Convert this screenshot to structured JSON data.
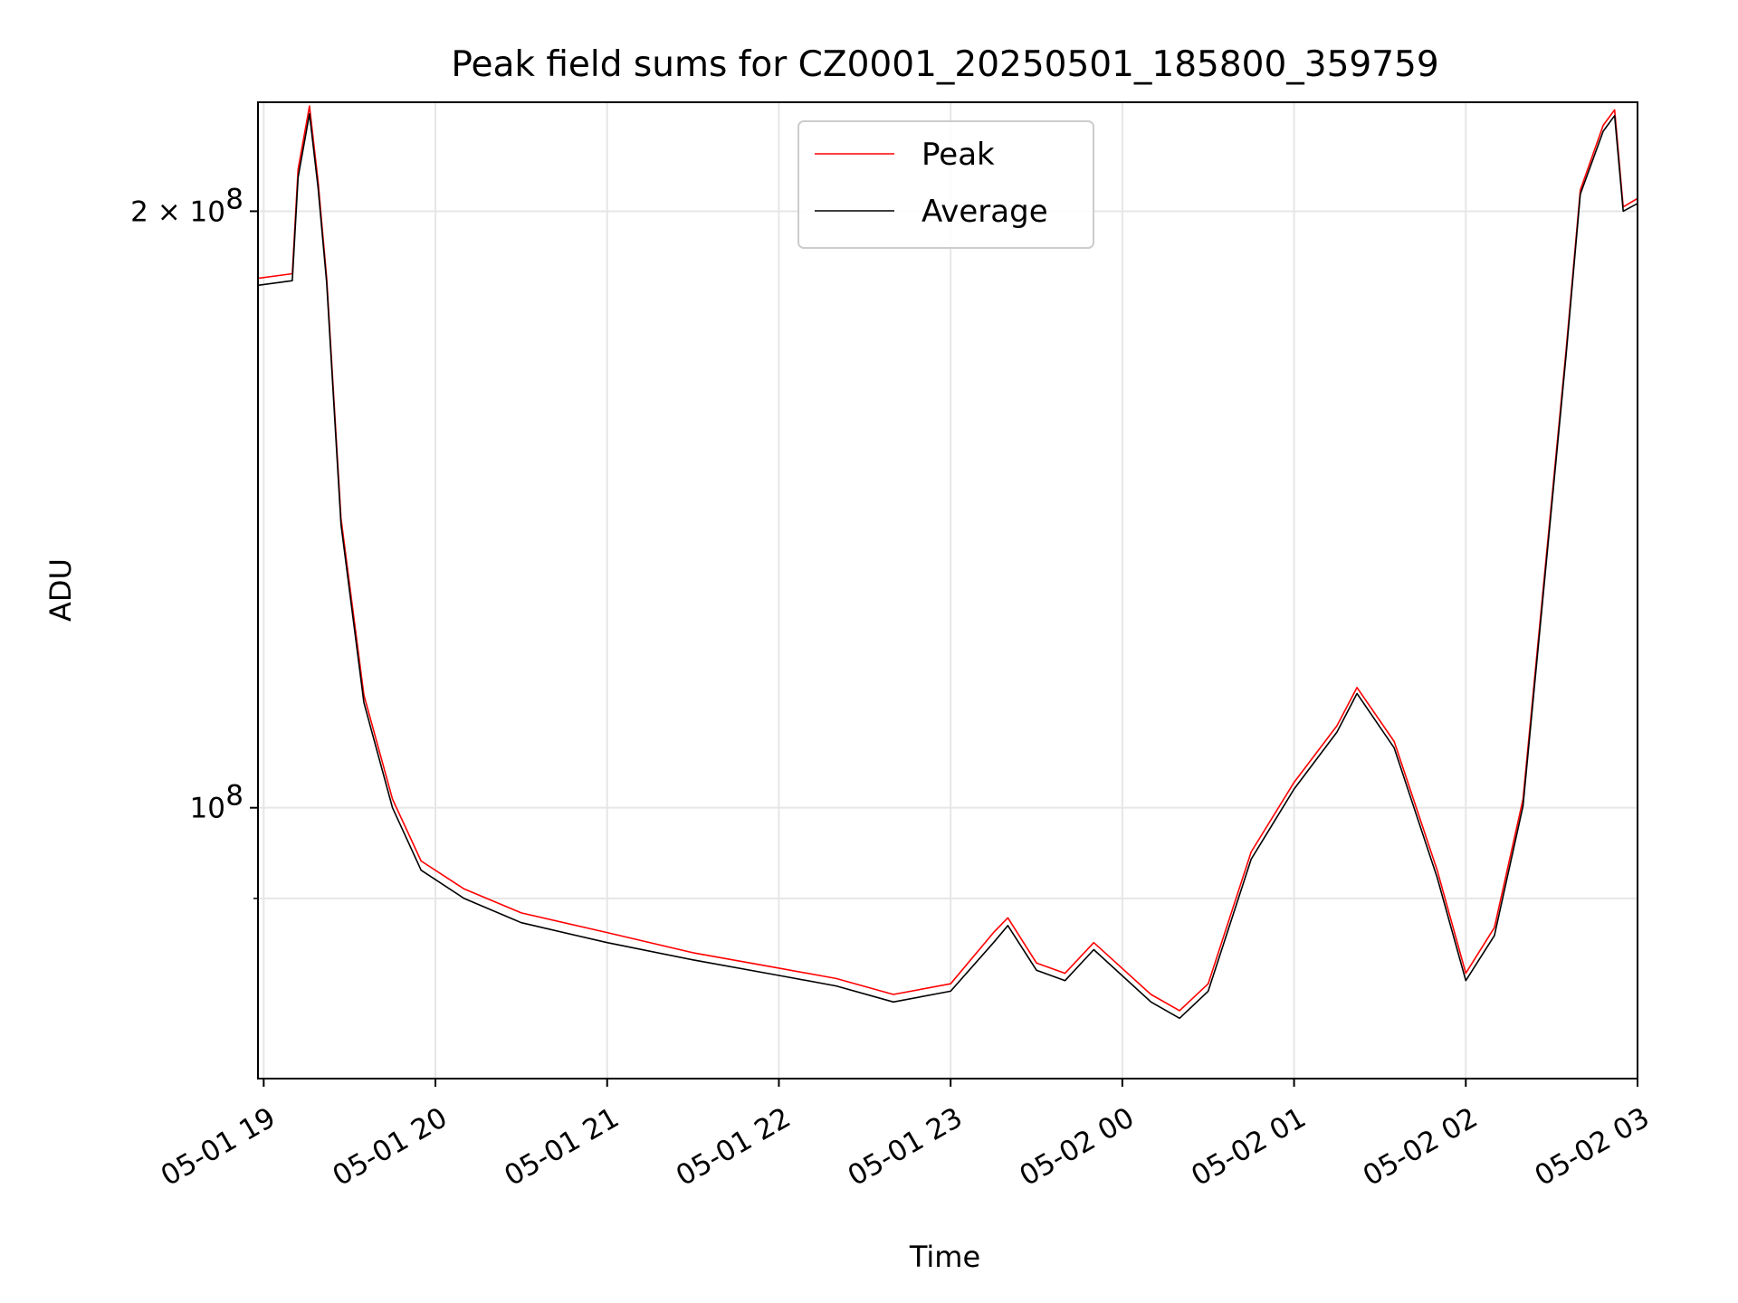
{
  "chart_data": {
    "type": "line",
    "title": "Peak field sums for CZ0001_20250501_185800_359759",
    "xlabel": "Time",
    "ylabel": "ADU",
    "y_scale": "log",
    "ylim": [
      73000000,
      227000000
    ],
    "xlim": [
      "2025-05-01T18:58:00",
      "2025-05-02T03:00:00"
    ],
    "x_ticks": [
      {
        "t": "2025-05-01T19:00:00",
        "label": "05-01 19"
      },
      {
        "t": "2025-05-01T20:00:00",
        "label": "05-01 20"
      },
      {
        "t": "2025-05-01T21:00:00",
        "label": "05-01 21"
      },
      {
        "t": "2025-05-01T22:00:00",
        "label": "05-01 22"
      },
      {
        "t": "2025-05-01T23:00:00",
        "label": "05-01 23"
      },
      {
        "t": "2025-05-02T00:00:00",
        "label": "05-02 00"
      },
      {
        "t": "2025-05-02T01:00:00",
        "label": "05-02 01"
      },
      {
        "t": "2025-05-02T02:00:00",
        "label": "05-02 02"
      },
      {
        "t": "2025-05-02T03:00:00",
        "label": "05-02 03"
      }
    ],
    "y_ticks": [
      {
        "v": 100000000,
        "label": "10",
        "exp": "8"
      },
      {
        "v": 200000000,
        "label": "2 × 10",
        "exp": "8"
      }
    ],
    "y_minor_ticks": [
      90000000
    ],
    "grid": true,
    "legend": {
      "placement": "upper center"
    },
    "series": [
      {
        "name": "Peak",
        "color": "#ff0000",
        "x": [
          "2025-05-01T18:58:00",
          "2025-05-01T19:10:00",
          "2025-05-01T19:12:00",
          "2025-05-01T19:16:00",
          "2025-05-01T19:19:00",
          "2025-05-01T19:22:00",
          "2025-05-01T19:27:00",
          "2025-05-01T19:35:00",
          "2025-05-01T19:45:00",
          "2025-05-01T19:55:00",
          "2025-05-01T20:10:00",
          "2025-05-01T20:30:00",
          "2025-05-01T21:00:00",
          "2025-05-01T21:30:00",
          "2025-05-01T22:00:00",
          "2025-05-01T22:20:00",
          "2025-05-01T22:40:00",
          "2025-05-01T23:00:00",
          "2025-05-01T23:15:00",
          "2025-05-01T23:20:00",
          "2025-05-01T23:30:00",
          "2025-05-01T23:40:00",
          "2025-05-01T23:50:00",
          "2025-05-02T00:10:00",
          "2025-05-02T00:20:00",
          "2025-05-02T00:30:00",
          "2025-05-02T00:45:00",
          "2025-05-02T01:00:00",
          "2025-05-02T01:15:00",
          "2025-05-02T01:22:00",
          "2025-05-02T01:35:00",
          "2025-05-02T01:50:00",
          "2025-05-02T02:00:00",
          "2025-05-02T02:10:00",
          "2025-05-02T02:20:00",
          "2025-05-02T02:35:00",
          "2025-05-02T02:40:00",
          "2025-05-02T02:48:00",
          "2025-05-02T02:52:00",
          "2025-05-02T02:55:00",
          "2025-05-02T03:00:00"
        ],
        "values": [
          185000000,
          186000000,
          210000000,
          226000000,
          207000000,
          185000000,
          140000000,
          114000000,
          101000000,
          94000000,
          91000000,
          88500000,
          86500000,
          84500000,
          83000000,
          82000000,
          80500000,
          81500000,
          86500000,
          88000000,
          83500000,
          82500000,
          85500000,
          80500000,
          79000000,
          81500000,
          95000000,
          103000000,
          110000000,
          115000000,
          108000000,
          93000000,
          82500000,
          87000000,
          101000000,
          170000000,
          205000000,
          221000000,
          225000000,
          201000000,
          203000000
        ]
      },
      {
        "name": "Average",
        "color": "#000000",
        "x": [
          "2025-05-01T18:58:00",
          "2025-05-01T19:10:00",
          "2025-05-01T19:12:00",
          "2025-05-01T19:16:00",
          "2025-05-01T19:19:00",
          "2025-05-01T19:22:00",
          "2025-05-01T19:27:00",
          "2025-05-01T19:35:00",
          "2025-05-01T19:45:00",
          "2025-05-01T19:55:00",
          "2025-05-01T20:10:00",
          "2025-05-01T20:30:00",
          "2025-05-01T21:00:00",
          "2025-05-01T21:30:00",
          "2025-05-01T22:00:00",
          "2025-05-01T22:20:00",
          "2025-05-01T22:40:00",
          "2025-05-01T23:00:00",
          "2025-05-01T23:15:00",
          "2025-05-01T23:20:00",
          "2025-05-01T23:30:00",
          "2025-05-01T23:40:00",
          "2025-05-01T23:50:00",
          "2025-05-02T00:10:00",
          "2025-05-02T00:20:00",
          "2025-05-02T00:30:00",
          "2025-05-02T00:45:00",
          "2025-05-02T01:00:00",
          "2025-05-02T01:15:00",
          "2025-05-02T01:22:00",
          "2025-05-02T01:35:00",
          "2025-05-02T01:50:00",
          "2025-05-02T02:00:00",
          "2025-05-02T02:10:00",
          "2025-05-02T02:20:00",
          "2025-05-02T02:35:00",
          "2025-05-02T02:40:00",
          "2025-05-02T02:48:00",
          "2025-05-02T02:52:00",
          "2025-05-02T02:55:00",
          "2025-05-02T03:00:00"
        ],
        "values": [
          183500000,
          184500000,
          208000000,
          224000000,
          205500000,
          184000000,
          139000000,
          113000000,
          100000000,
          93000000,
          90000000,
          87500000,
          85500000,
          83800000,
          82300000,
          81300000,
          79800000,
          80800000,
          85500000,
          87200000,
          82800000,
          81800000,
          84800000,
          79800000,
          78300000,
          80800000,
          94200000,
          102200000,
          109200000,
          114200000,
          107200000,
          92200000,
          81800000,
          86200000,
          100200000,
          169000000,
          204000000,
          219500000,
          223500000,
          200000000,
          201800000
        ]
      }
    ]
  }
}
